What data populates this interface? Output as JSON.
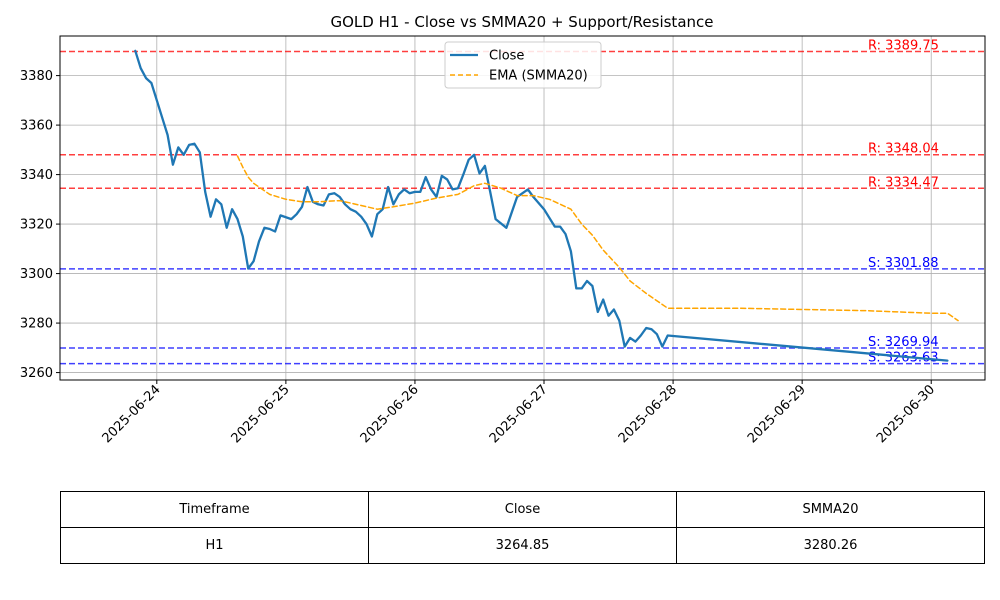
{
  "chart_data": {
    "type": "line",
    "title": "GOLD H1 - Close vs SMMA20 + Support/Resistance",
    "xlabel": "",
    "ylabel": "",
    "x_ticks": [
      "2025-06-24",
      "2025-06-25",
      "2025-06-26",
      "2025-06-27",
      "2025-06-28",
      "2025-06-29",
      "2025-06-30"
    ],
    "y_ticks": [
      3260,
      3280,
      3300,
      3320,
      3340,
      3360,
      3380
    ],
    "xlim": [
      "2025-06-23 06:00",
      "2025-06-30 10:00"
    ],
    "ylim": [
      3257,
      3396
    ],
    "grid": true,
    "legend_position": "top-center",
    "series": [
      {
        "name": "Close",
        "color": "#1f77b4",
        "style": "solid",
        "points": [
          [
            "2025-06-23 20:00",
            3390
          ],
          [
            "2025-06-23 21:00",
            3383
          ],
          [
            "2025-06-23 22:00",
            3379
          ],
          [
            "2025-06-23 23:00",
            3377
          ],
          [
            "2025-06-24 00:00",
            3370
          ],
          [
            "2025-06-24 01:00",
            3363
          ],
          [
            "2025-06-24 02:00",
            3356
          ],
          [
            "2025-06-24 03:00",
            3344
          ],
          [
            "2025-06-24 04:00",
            3351
          ],
          [
            "2025-06-24 05:00",
            3348
          ],
          [
            "2025-06-24 06:00",
            3352
          ],
          [
            "2025-06-24 07:00",
            3352.5
          ],
          [
            "2025-06-24 08:00",
            3349
          ],
          [
            "2025-06-24 09:00",
            3333
          ],
          [
            "2025-06-24 10:00",
            3323
          ],
          [
            "2025-06-24 11:00",
            3330
          ],
          [
            "2025-06-24 12:00",
            3328
          ],
          [
            "2025-06-24 13:00",
            3318.5
          ],
          [
            "2025-06-24 14:00",
            3326
          ],
          [
            "2025-06-24 15:00",
            3322
          ],
          [
            "2025-06-24 16:00",
            3315
          ],
          [
            "2025-06-24 17:00",
            3302
          ],
          [
            "2025-06-24 18:00",
            3305
          ],
          [
            "2025-06-24 19:00",
            3313
          ],
          [
            "2025-06-24 20:00",
            3318.5
          ],
          [
            "2025-06-24 21:00",
            3318
          ],
          [
            "2025-06-24 22:00",
            3317
          ],
          [
            "2025-06-24 23:00",
            3323.5
          ],
          [
            "2025-06-25 01:00",
            3322
          ],
          [
            "2025-06-25 02:00",
            3324
          ],
          [
            "2025-06-25 03:00",
            3327
          ],
          [
            "2025-06-25 04:00",
            3335
          ],
          [
            "2025-06-25 05:00",
            3329
          ],
          [
            "2025-06-25 06:00",
            3328
          ],
          [
            "2025-06-25 07:00",
            3327.5
          ],
          [
            "2025-06-25 08:00",
            3332
          ],
          [
            "2025-06-25 09:00",
            3332.5
          ],
          [
            "2025-06-25 10:00",
            3331
          ],
          [
            "2025-06-25 11:00",
            3328
          ],
          [
            "2025-06-25 12:00",
            3326
          ],
          [
            "2025-06-25 13:00",
            3325
          ],
          [
            "2025-06-25 14:00",
            3323
          ],
          [
            "2025-06-25 15:00",
            3320
          ],
          [
            "2025-06-25 16:00",
            3315
          ],
          [
            "2025-06-25 17:00",
            3324
          ],
          [
            "2025-06-25 18:00",
            3326
          ],
          [
            "2025-06-25 19:00",
            3335
          ],
          [
            "2025-06-25 20:00",
            3328
          ],
          [
            "2025-06-25 21:00",
            3332
          ],
          [
            "2025-06-25 22:00",
            3334
          ],
          [
            "2025-06-25 23:00",
            3332.5
          ],
          [
            "2025-06-26 00:00",
            3333
          ],
          [
            "2025-06-26 01:00",
            3333
          ],
          [
            "2025-06-26 02:00",
            3339
          ],
          [
            "2025-06-26 03:00",
            3334
          ],
          [
            "2025-06-26 04:00",
            3331
          ],
          [
            "2025-06-26 05:00",
            3339.5
          ],
          [
            "2025-06-26 06:00",
            3338
          ],
          [
            "2025-06-26 07:00",
            3334
          ],
          [
            "2025-06-26 08:00",
            3334.5
          ],
          [
            "2025-06-26 09:00",
            3340
          ],
          [
            "2025-06-26 10:00",
            3346
          ],
          [
            "2025-06-26 11:00",
            3348
          ],
          [
            "2025-06-26 12:00",
            3340.5
          ],
          [
            "2025-06-26 13:00",
            3343.5
          ],
          [
            "2025-06-26 14:00",
            3333
          ],
          [
            "2025-06-26 15:00",
            3322
          ],
          [
            "2025-06-26 17:00",
            3318.5
          ],
          [
            "2025-06-26 19:00",
            3331
          ],
          [
            "2025-06-26 21:00",
            3334
          ],
          [
            "2025-06-26 22:00",
            3331
          ],
          [
            "2025-06-27 00:00",
            3326
          ],
          [
            "2025-06-27 02:00",
            3319
          ],
          [
            "2025-06-27 03:00",
            3319
          ],
          [
            "2025-06-27 04:00",
            3316
          ],
          [
            "2025-06-27 05:00",
            3309
          ],
          [
            "2025-06-27 06:00",
            3294
          ],
          [
            "2025-06-27 07:00",
            3294
          ],
          [
            "2025-06-27 08:00",
            3297
          ],
          [
            "2025-06-27 09:00",
            3295
          ],
          [
            "2025-06-27 10:00",
            3284.5
          ],
          [
            "2025-06-27 11:00",
            3289.5
          ],
          [
            "2025-06-27 12:00",
            3283
          ],
          [
            "2025-06-27 13:00",
            3285.5
          ],
          [
            "2025-06-27 14:00",
            3281
          ],
          [
            "2025-06-27 15:00",
            3270.5
          ],
          [
            "2025-06-27 16:00",
            3274
          ],
          [
            "2025-06-27 17:00",
            3272.5
          ],
          [
            "2025-06-27 18:00",
            3275
          ],
          [
            "2025-06-27 19:00",
            3278
          ],
          [
            "2025-06-27 20:00",
            3277.5
          ],
          [
            "2025-06-27 21:00",
            3275.5
          ],
          [
            "2025-06-27 22:00",
            3270.5
          ],
          [
            "2025-06-27 23:00",
            3275
          ],
          [
            "2025-06-30 03:00",
            3264.85
          ]
        ]
      },
      {
        "name": "EMA (SMMA20)",
        "color": "#ffa500",
        "style": "dashed",
        "points": [
          [
            "2025-06-24 15:00",
            3347.5
          ],
          [
            "2025-06-24 16:00",
            3343
          ],
          [
            "2025-06-24 17:00",
            3339
          ],
          [
            "2025-06-24 18:00",
            3336.5
          ],
          [
            "2025-06-24 19:00",
            3335
          ],
          [
            "2025-06-24 21:00",
            3332
          ],
          [
            "2025-06-25 00:00",
            3330
          ],
          [
            "2025-06-25 03:00",
            3329
          ],
          [
            "2025-06-25 06:00",
            3329
          ],
          [
            "2025-06-25 10:00",
            3329.5
          ],
          [
            "2025-06-25 14:00",
            3327.5
          ],
          [
            "2025-06-25 17:00",
            3326
          ],
          [
            "2025-06-25 20:00",
            3327
          ],
          [
            "2025-06-26 00:00",
            3328.5
          ],
          [
            "2025-06-26 04:00",
            3330.5
          ],
          [
            "2025-06-26 08:00",
            3332
          ],
          [
            "2025-06-26 11:00",
            3335.5
          ],
          [
            "2025-06-26 13:00",
            3336.5
          ],
          [
            "2025-06-26 16:00",
            3334.5
          ],
          [
            "2025-06-26 19:00",
            3331.5
          ],
          [
            "2025-06-26 22:00",
            3331.5
          ],
          [
            "2025-06-27 01:00",
            3330
          ],
          [
            "2025-06-27 05:00",
            3326
          ],
          [
            "2025-06-27 07:00",
            3320
          ],
          [
            "2025-06-27 09:00",
            3315.5
          ],
          [
            "2025-06-27 11:00",
            3309.5
          ],
          [
            "2025-06-27 14:00",
            3302.5
          ],
          [
            "2025-06-27 16:00",
            3297
          ],
          [
            "2025-06-27 19:00",
            3292
          ],
          [
            "2025-06-27 23:00",
            3286
          ],
          [
            "2025-06-28 12:00",
            3286
          ],
          [
            "2025-06-29 12:00",
            3285
          ],
          [
            "2025-06-30 00:00",
            3284
          ],
          [
            "2025-06-30 03:00",
            3284
          ],
          [
            "2025-06-30 05:00",
            3281
          ]
        ]
      }
    ],
    "hlines": [
      {
        "label": "R: 3389.75",
        "value": 3389.75,
        "kind": "resistance",
        "color": "#ff0000"
      },
      {
        "label": "R: 3348.04",
        "value": 3348.04,
        "kind": "resistance",
        "color": "#ff0000"
      },
      {
        "label": "R: 3334.47",
        "value": 3334.47,
        "kind": "resistance",
        "color": "#ff0000"
      },
      {
        "label": "S: 3301.88",
        "value": 3301.88,
        "kind": "support",
        "color": "#0000ff"
      },
      {
        "label": "S: 3269.94",
        "value": 3269.94,
        "kind": "support",
        "color": "#0000ff"
      },
      {
        "label": "S: 3263.63",
        "value": 3263.63,
        "kind": "support",
        "color": "#0000ff"
      }
    ]
  },
  "summary_table": {
    "headers": [
      "Timeframe",
      "Close",
      "SMMA20"
    ],
    "rows": [
      [
        "H1",
        "3264.85",
        "3280.26"
      ]
    ]
  }
}
